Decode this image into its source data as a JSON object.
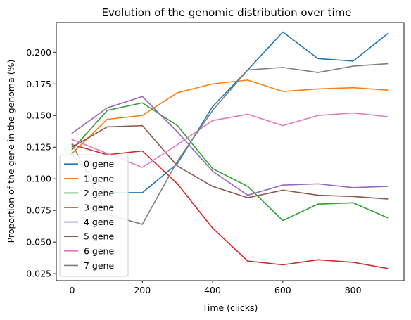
{
  "chart_data": {
    "type": "line",
    "title": "Evolution of the genomic distribution over time",
    "xlabel": "Time (clicks)",
    "ylabel": "Proportion of the gene in the genoma (%)",
    "xlim": [
      -45,
      945
    ],
    "ylim": [
      0.0195,
      0.2235
    ],
    "x_ticks": [
      0,
      200,
      400,
      600,
      800
    ],
    "y_ticks": [
      0.025,
      0.05,
      0.075,
      0.1,
      0.125,
      0.15,
      0.175,
      0.2
    ],
    "y_tick_labels": [
      "0.025",
      "0.050",
      "0.075",
      "0.100",
      "0.125",
      "0.150",
      "0.175",
      "0.200"
    ],
    "grid": false,
    "legend_position": "lower-left",
    "x": [
      0,
      100,
      200,
      300,
      400,
      500,
      600,
      700,
      800,
      900
    ],
    "series": [
      {
        "name": "0 gene",
        "color": "#1f77b4",
        "values": [
          0.119,
          0.089,
          0.089,
          0.112,
          0.157,
          0.186,
          0.216,
          0.195,
          0.193,
          0.215
        ]
      },
      {
        "name": "1 gene",
        "color": "#ff7f0e",
        "values": [
          0.12,
          0.147,
          0.15,
          0.168,
          0.175,
          0.178,
          0.169,
          0.171,
          0.172,
          0.17
        ]
      },
      {
        "name": "2 gene",
        "color": "#2ca02c",
        "values": [
          0.123,
          0.154,
          0.16,
          0.142,
          0.108,
          0.094,
          0.067,
          0.08,
          0.081,
          0.069
        ]
      },
      {
        "name": "3 gene",
        "color": "#d62728",
        "values": [
          0.127,
          0.119,
          0.122,
          0.096,
          0.061,
          0.035,
          0.032,
          0.036,
          0.034,
          0.029
        ]
      },
      {
        "name": "4 gene",
        "color": "#9467bd",
        "values": [
          0.136,
          0.156,
          0.165,
          0.137,
          0.106,
          0.087,
          0.095,
          0.096,
          0.093,
          0.094
        ]
      },
      {
        "name": "5 gene",
        "color": "#8c564b",
        "values": [
          0.125,
          0.141,
          0.142,
          0.11,
          0.094,
          0.085,
          0.091,
          0.087,
          0.086,
          0.084
        ]
      },
      {
        "name": "6 gene",
        "color": "#e377c2",
        "values": [
          0.131,
          0.12,
          0.109,
          0.127,
          0.146,
          0.151,
          0.142,
          0.15,
          0.152,
          0.149
        ]
      },
      {
        "name": "7 gene",
        "color": "#7f7f7f",
        "values": [
          0.128,
          0.072,
          0.064,
          0.114,
          0.154,
          0.186,
          0.188,
          0.184,
          0.189,
          0.191
        ]
      }
    ]
  }
}
